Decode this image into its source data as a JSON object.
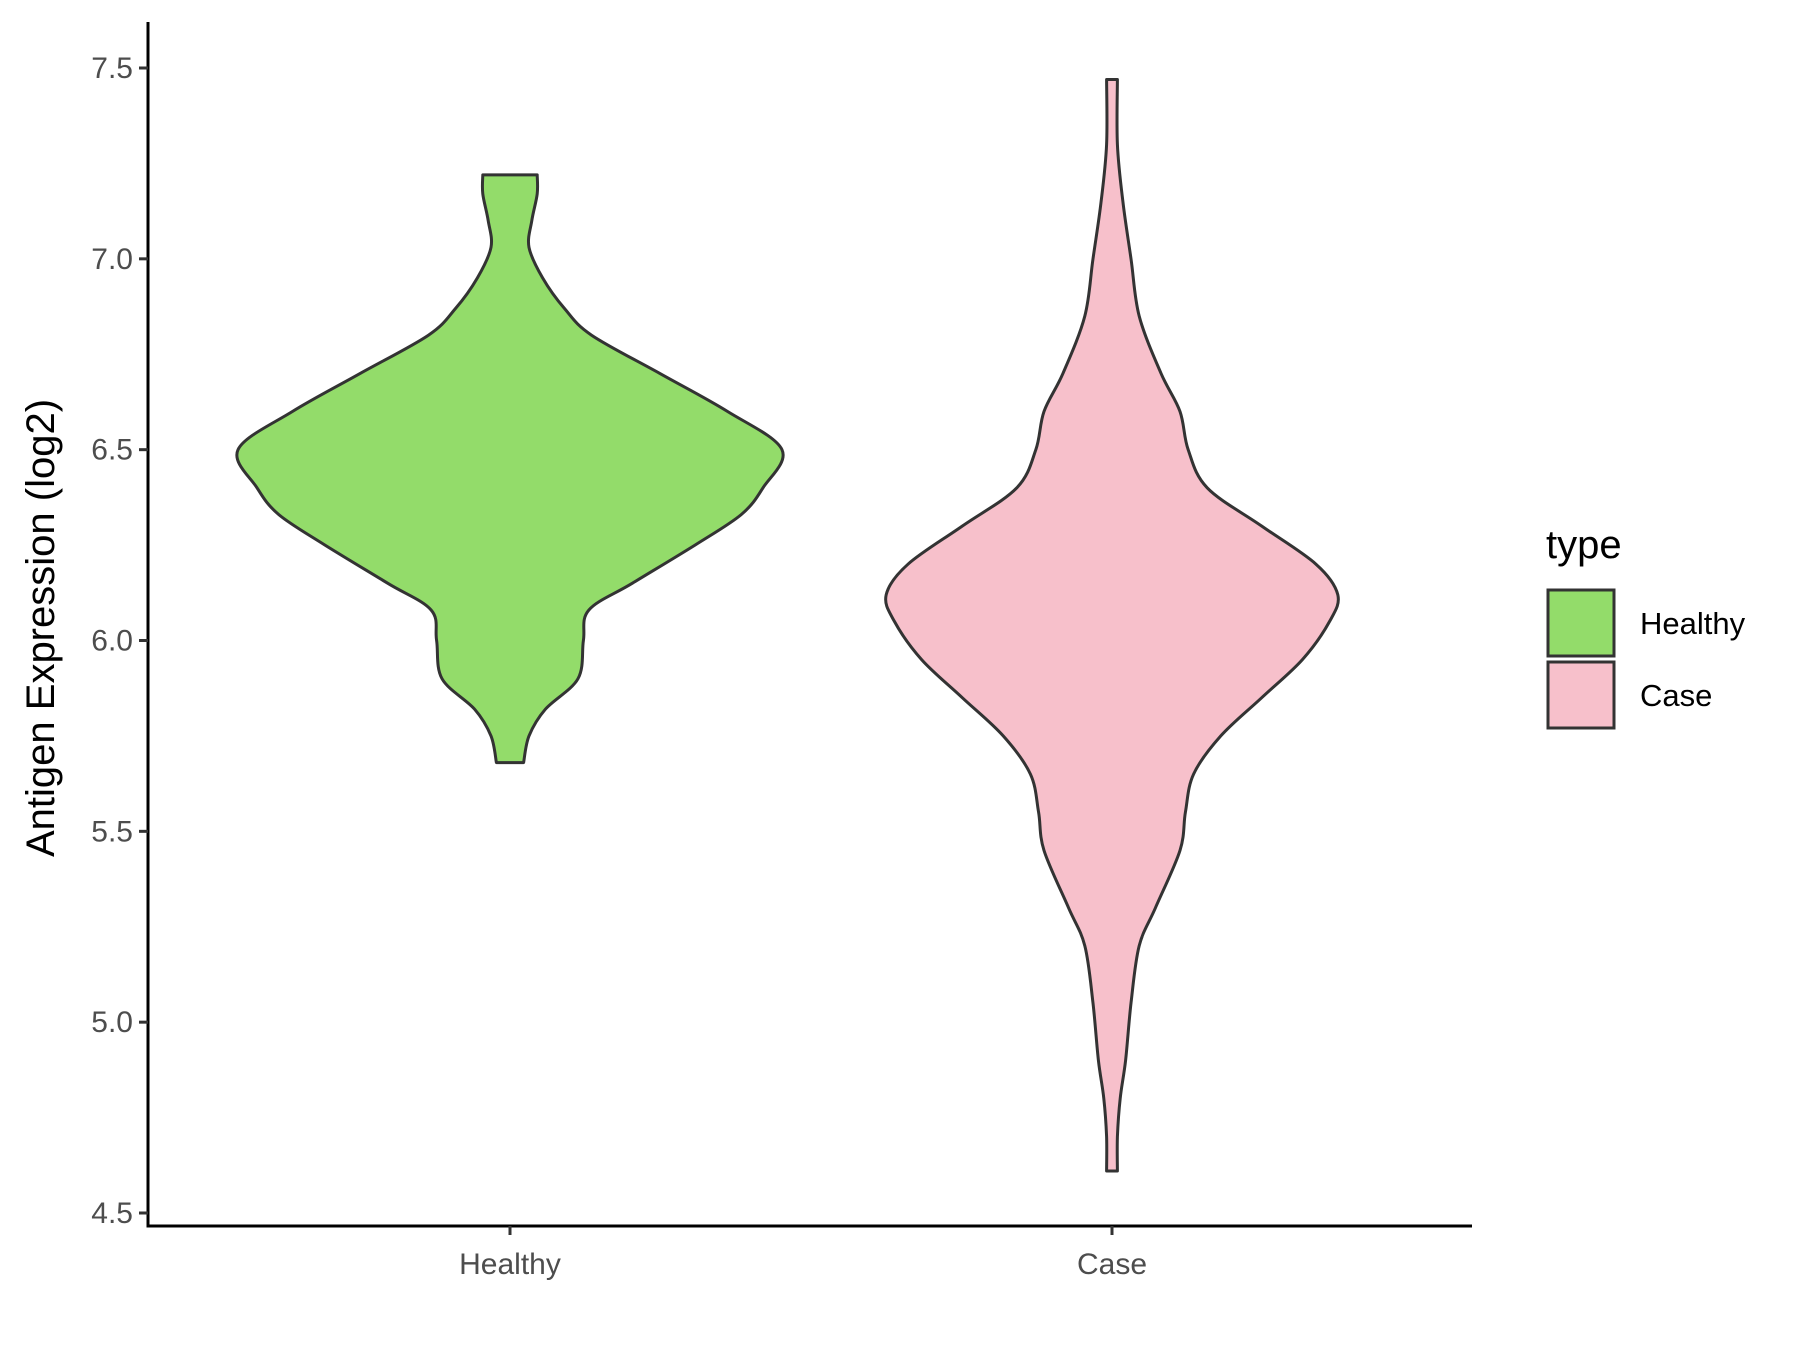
{
  "chart_data": {
    "type": "violin",
    "ylabel": "Antigen Expression (log2)",
    "xlabel": "",
    "ylim": [
      4.5,
      7.5
    ],
    "yticks": [
      "4.5",
      "5.0",
      "5.5",
      "6.0",
      "6.5",
      "7.0",
      "7.5"
    ],
    "categories": [
      "Healthy",
      "Case"
    ],
    "grid": false,
    "legend": {
      "title": "type",
      "position": "right",
      "entries": [
        {
          "label": "Healthy",
          "color": "#93dc6a"
        },
        {
          "label": "Case",
          "color": "#f7c0cb"
        }
      ]
    },
    "series": [
      {
        "category": "Healthy",
        "color": "#93dc6a",
        "min": 5.68,
        "max": 7.22,
        "density_profile": [
          [
            5.68,
            0.05
          ],
          [
            5.75,
            0.07
          ],
          [
            5.82,
            0.13
          ],
          [
            5.9,
            0.25
          ],
          [
            6.0,
            0.27
          ],
          [
            6.08,
            0.29
          ],
          [
            6.15,
            0.45
          ],
          [
            6.25,
            0.68
          ],
          [
            6.33,
            0.85
          ],
          [
            6.4,
            0.93
          ],
          [
            6.5,
            1.0
          ],
          [
            6.6,
            0.8
          ],
          [
            6.7,
            0.55
          ],
          [
            6.8,
            0.3
          ],
          [
            6.87,
            0.2
          ],
          [
            6.95,
            0.12
          ],
          [
            7.03,
            0.07
          ],
          [
            7.1,
            0.08
          ],
          [
            7.17,
            0.1
          ],
          [
            7.22,
            0.1
          ]
        ]
      },
      {
        "category": "Case",
        "color": "#f7c0cb",
        "min": 4.61,
        "max": 7.47,
        "density_profile": [
          [
            4.61,
            0.02
          ],
          [
            4.7,
            0.02
          ],
          [
            4.8,
            0.03
          ],
          [
            4.9,
            0.05
          ],
          [
            5.05,
            0.07
          ],
          [
            5.2,
            0.1
          ],
          [
            5.3,
            0.16
          ],
          [
            5.45,
            0.25
          ],
          [
            5.55,
            0.27
          ],
          [
            5.65,
            0.3
          ],
          [
            5.75,
            0.4
          ],
          [
            5.85,
            0.55
          ],
          [
            5.95,
            0.7
          ],
          [
            6.05,
            0.8
          ],
          [
            6.12,
            0.83
          ],
          [
            6.2,
            0.75
          ],
          [
            6.3,
            0.55
          ],
          [
            6.4,
            0.35
          ],
          [
            6.5,
            0.28
          ],
          [
            6.6,
            0.25
          ],
          [
            6.7,
            0.18
          ],
          [
            6.85,
            0.1
          ],
          [
            7.0,
            0.07
          ],
          [
            7.15,
            0.04
          ],
          [
            7.3,
            0.02
          ],
          [
            7.47,
            0.02
          ]
        ]
      }
    ]
  }
}
